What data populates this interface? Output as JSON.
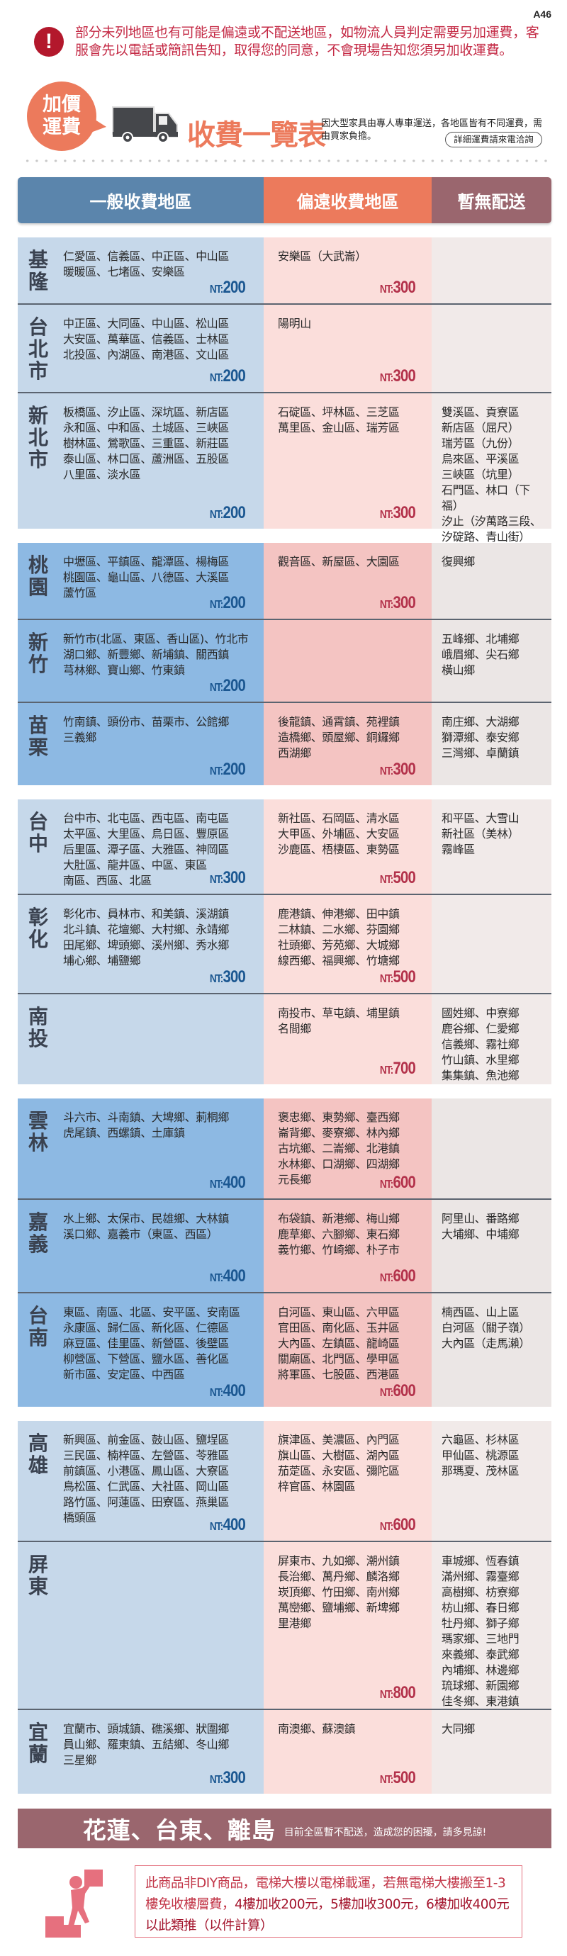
{
  "page_code": "A46",
  "notice": {
    "icon": "exclamation-icon",
    "text": "部分未列地區也有可能是偏遠或不配送地區，如物流人員判定需要另加運費，客服會先以電話或簡訊告知，取得您的同意，不會現場告知您須另加收運費。"
  },
  "header": {
    "badge": "加價運費",
    "badge_line1": "加價",
    "badge_line2": "運費",
    "icon": "truck-icon",
    "title": "收費一覽表",
    "description": "因大型家具由專人專車運送，各地區皆有不同運費，需由買家負擔。",
    "detail_button": "詳細運費請來電洽詢"
  },
  "columns": [
    "一般收費地區",
    "偏遠收費地區",
    "暫無配送"
  ],
  "colors": {
    "general": "#5b85ac",
    "remote": "#ec7a5c",
    "no_delivery": "#9a666e"
  },
  "groups": [
    {
      "rows": [
        {
          "province": "基隆",
          "general": "仁愛區、信義區、中正區、中山區\n暖暖區、七堵區、安樂區",
          "general_price": "200",
          "remote": "安樂區（大武崙）",
          "remote_price": "300",
          "none": ""
        },
        {
          "province": "台北市",
          "general": "中正區、大同區、中山區、松山區\n大安區、萬華區、信義區、士林區\n北投區、內湖區、南港區、文山區",
          "general_price": "200",
          "remote": "陽明山",
          "remote_price": "300",
          "none": ""
        },
        {
          "province": "新北市",
          "general": "板橋區、汐止區、深坑區、新店區\n永和區、中和區、土城區、三峽區\n樹林區、鶯歌區、三重區、新莊區\n泰山區、林口區、蘆洲區、五股區\n八里區、淡水區",
          "general_price": "200",
          "remote": "石碇區、坪林區、三芝區\n萬里區、金山區、瑞芳區",
          "remote_price": "300",
          "none": "雙溪區、貢寮區\n新店區（屈尺）\n瑞芳區（九份）\n烏來區、平溪區\n三峽區（坑里）\n石門區、林口（下福）\n汐止（汐萬路三段、\n汐碇路、青山街）"
        }
      ]
    },
    {
      "rows": [
        {
          "province": "桃園",
          "general": "中壢區、平鎮區、龍潭區、楊梅區\n桃園區、龜山區、八德區、大溪區\n蘆竹區",
          "general_price": "200",
          "remote": "觀音區、新屋區、大園區",
          "remote_price": "300",
          "none": "復興鄉"
        },
        {
          "province": "新竹",
          "general": "新竹市(北區、東區、香山區)、竹北市\n湖口鄉、新豐鄉、新埔鎮、關西鎮\n芎林鄉、寶山鄉、竹東鎮",
          "general_price": "200",
          "remote": "",
          "remote_price": "",
          "none": "五峰鄉、北埔鄉\n峨眉鄉、尖石鄉\n橫山鄉"
        },
        {
          "province": "苗栗",
          "general": "竹南鎮、頭份市、苗栗市、公館鄉\n三義鄉",
          "general_price": "200",
          "remote": "後龍鎮、通霄鎮、苑裡鎮\n造橋鄉、頭屋鄉、銅鑼鄉\n西湖鄉",
          "remote_price": "300",
          "none": "南庄鄉、大湖鄉\n獅潭鄉、泰安鄉\n三灣鄉、卓蘭鎮"
        }
      ]
    },
    {
      "rows": [
        {
          "province": "台中",
          "general": "台中市、北屯區、西屯區、南屯區\n太平區、大里區、烏日區、豐原區\n后里區、潭子區、大雅區、神岡區\n大肚區、龍井區、中區、東區\n南區、西區、北區",
          "general_price": "300",
          "remote": "新社區、石岡區、清水區\n大甲區、外埔區、大安區\n沙鹿區、梧棲區、東勢區",
          "remote_price": "500",
          "none": "和平區、大雪山\n新社區（美林）\n霧峰區"
        },
        {
          "province": "彰化",
          "general": "彰化市、員林市、和美鎮、溪湖鎮\n北斗鎮、花壇鄉、大村鄉、永靖鄉\n田尾鄉、埤頭鄉、溪州鄉、秀水鄉\n埔心鄉、埔鹽鄉",
          "general_price": "300",
          "remote": "鹿港鎮、伸港鄉、田中鎮\n二林鎮、二水鄉、芬園鄉\n社頭鄉、芳苑鄉、大城鄉\n線西鄉、福興鄉、竹塘鄉",
          "remote_price": "500",
          "none": ""
        },
        {
          "province": "南投",
          "general": "",
          "general_price": "",
          "remote": "南投市、草屯鎮、埔里鎮\n名間鄉",
          "remote_price": "700",
          "none": "國姓鄉、中寮鄉\n鹿谷鄉、仁愛鄉\n信義鄉、霧社鄉\n竹山鎮、水里鄉\n集集鎮、魚池鄉"
        }
      ]
    },
    {
      "rows": [
        {
          "province": "雲林",
          "general": "斗六市、斗南鎮、大埤鄉、莿桐鄉\n虎尾鎮、西螺鎮、土庫鎮",
          "general_price": "400",
          "remote": "褒忠鄉、東勢鄉、臺西鄉\n崙背鄉、麥寮鄉、林內鄉\n古坑鄉、二崙鄉、北港鎮\n水林鄉、口湖鄉、四湖鄉\n元長鄉",
          "remote_price": "600",
          "none": ""
        },
        {
          "province": "嘉義",
          "general": "水上鄉、太保市、民雄鄉、大林鎮\n溪口鄉、嘉義市（東區、西區）",
          "general_price": "400",
          "remote": "布袋鎮、新港鄉、梅山鄉\n鹿草鄉、六腳鄉、東石鄉\n義竹鄉、竹崎鄉、朴子市",
          "remote_price": "600",
          "none": "阿里山、番路鄉\n大埔鄉、中埔鄉"
        },
        {
          "province": "台南",
          "general": "東區、南區、北區、安平區、安南區\n永康區、歸仁區、新化區、仁德區\n麻豆區、佳里區、新營區、後壁區\n柳營區、下營區、鹽水區、善化區\n新市區、安定區、中西區",
          "general_price": "400",
          "remote": "白河區、東山區、六甲區\n官田區、南化區、玉井區\n大內區、左鎮區、龍崎區\n關廟區、北門區、學甲區\n將軍區、七股區、西港區",
          "remote_price": "600",
          "none": "楠西區、山上區\n白河區（關子嶺）\n大內區（走馬瀨）"
        }
      ]
    },
    {
      "rows": [
        {
          "province": "高雄",
          "general": "新興區、前金區、鼓山區、鹽埕區\n三民區、楠梓區、左營區、苓雅區\n前鎮區、小港區、鳳山區、大寮區\n鳥松區、仁武區、大社區、岡山區\n路竹區、阿蓮區、田寮區、燕巢區\n橋頭區",
          "general_price": "400",
          "remote": "旗津區、美濃區、內門區\n旗山區、大樹區、湖內區\n茄萣區、永安區、彌陀區\n梓官區、林園區",
          "remote_price": "600",
          "none": "六龜區、杉林區\n甲仙區、桃源區\n那瑪夏、茂林區"
        },
        {
          "province": "屏東",
          "general": "",
          "general_price": "",
          "remote": "屏東市、九如鄉、潮州鎮\n長治鄉、萬丹鄉、麟洛鄉\n崁頂鄉、竹田鄉、南州鄉\n萬巒鄉、鹽埔鄉、新埤鄉\n里港鄉",
          "remote_price": "800",
          "none": "車城鄉、恆春鎮\n滿州鄉、霧臺鄉\n高樹鄉、枋寮鄉\n枋山鄉、春日鄉\n牡丹鄉、獅子鄉\n瑪家鄉、三地門\n來義鄉、泰武鄉\n內埔鄉、林邊鄉\n琉球鄉、新園鄉\n佳冬鄉、東港鎮"
        },
        {
          "province": "宜蘭",
          "general": "宜蘭市、頭城鎮、礁溪鄉、狀圍鄉\n員山鄉、羅東鎮、五結鄉、冬山鄉\n三星鄉",
          "general_price": "300",
          "remote": "南澳鄉、蘇澳鎮",
          "remote_price": "500",
          "none": "大同鄉"
        }
      ]
    }
  ],
  "price_prefix": "NT:",
  "islands": {
    "title": "花蓮、台東、離島",
    "note": "目前全區暫不配送，造成您的困擾，請多見諒!"
  },
  "floor_fee": {
    "icon": "person-carrying-box-upstairs-icon",
    "text_1": "此商品非DIY商品，電梯大樓以電梯載運，若無電梯大樓搬至1-3樓免收樓層費，",
    "text_2": "4樓加收200元，5樓加收300元，6樓加收400元以此類推",
    "text_3": "（以件計算）"
  }
}
